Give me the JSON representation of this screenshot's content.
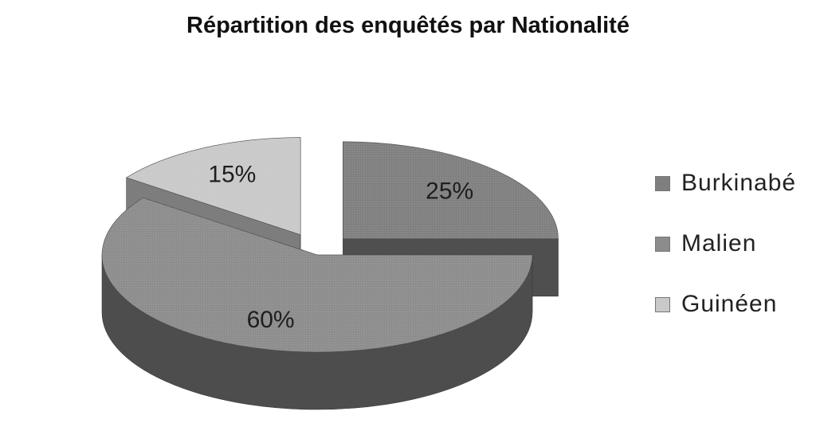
{
  "chart_data": {
    "type": "pie",
    "title": "Répartition des enquêtés par Nationalité",
    "categories": [
      "Burkinabé",
      "Malien",
      "Guinéen"
    ],
    "values": [
      25,
      60,
      15
    ],
    "labels": [
      "25%",
      "60%",
      "15%"
    ],
    "colors": [
      "#7f7f7f",
      "#8c8c8c",
      "#c9c9c9"
    ],
    "legend_position": "right"
  }
}
